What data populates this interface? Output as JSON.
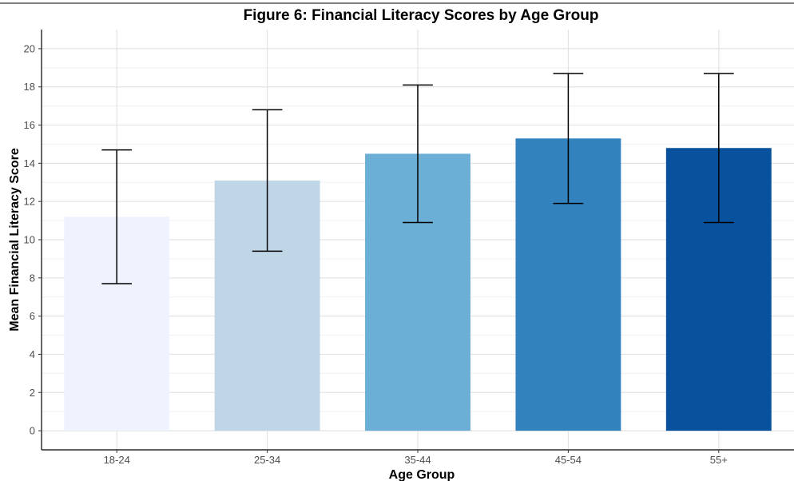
{
  "chart_data": {
    "type": "bar",
    "title": "Figure 6: Financial Literacy Scores by Age Group",
    "xlabel": "Age Group",
    "ylabel": "Mean Financial Literacy Score",
    "categories": [
      "18-24",
      "25-34",
      "35-44",
      "45-54",
      "55+"
    ],
    "values": [
      11.2,
      13.1,
      14.5,
      15.3,
      14.8
    ],
    "error_low": [
      7.7,
      9.4,
      10.9,
      11.9,
      10.9
    ],
    "error_high": [
      14.7,
      16.8,
      18.1,
      18.7,
      18.7
    ],
    "colors": [
      "#eef3fe",
      "#bfd6e7",
      "#6baed6",
      "#3182bd",
      "#08519c"
    ],
    "ylim": [
      -1,
      21
    ],
    "yticks": [
      0,
      2,
      4,
      6,
      8,
      10,
      12,
      14,
      16,
      18,
      20
    ],
    "ytick_labels": [
      "0",
      "2",
      "4",
      "6",
      "8",
      "10",
      "12",
      "14",
      "16",
      "18",
      "20"
    ],
    "grid": true,
    "legend": "none"
  }
}
